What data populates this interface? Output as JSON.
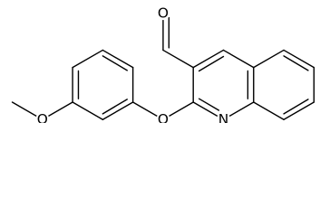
{
  "atoms": [
    {
      "label": "O"
    },
    {
      "label": "O"
    },
    {
      "label": "O"
    },
    {
      "label": "N"
    }
  ]
}
